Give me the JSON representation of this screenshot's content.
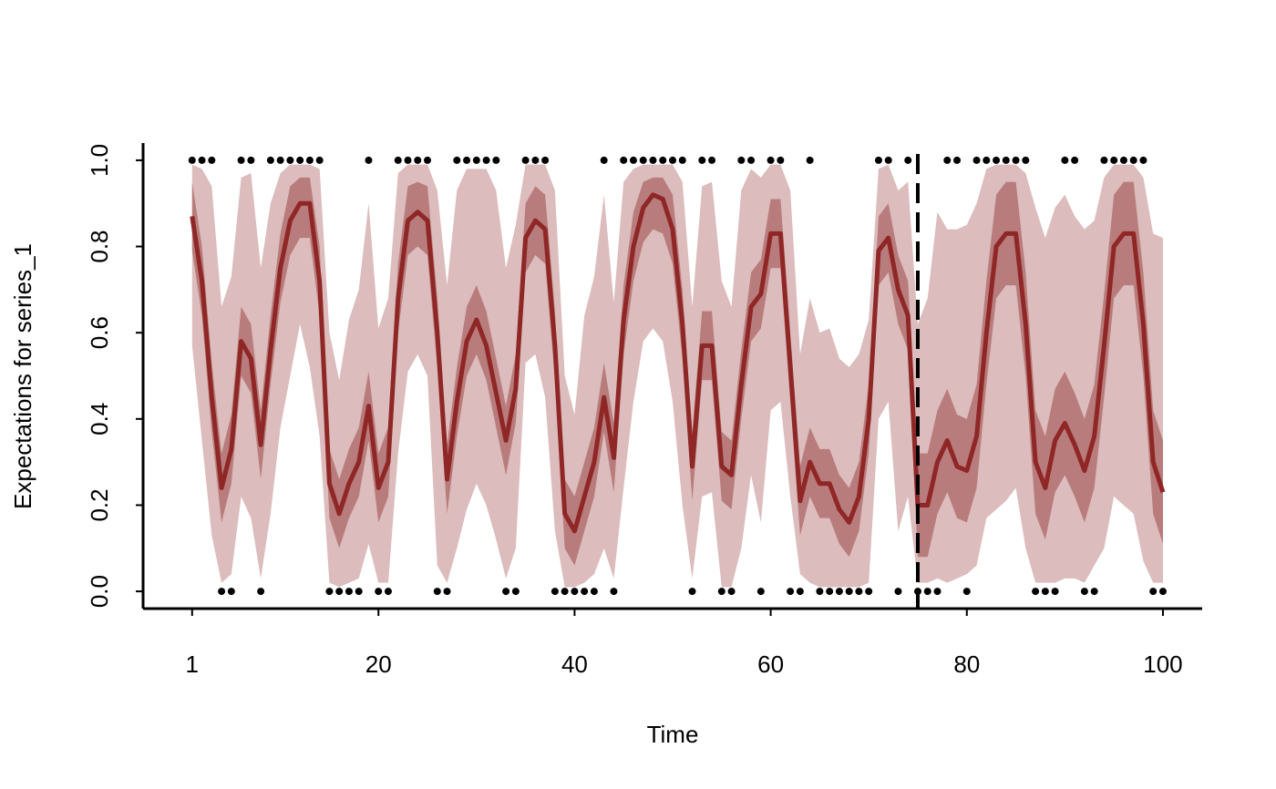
{
  "chart_data": {
    "type": "line",
    "xlabel": "Time",
    "ylabel": "Expectations for series_1",
    "x": [
      1,
      2,
      3,
      4,
      5,
      6,
      7,
      8,
      9,
      10,
      11,
      12,
      13,
      14,
      15,
      16,
      17,
      18,
      19,
      20,
      21,
      22,
      23,
      24,
      25,
      26,
      27,
      28,
      29,
      30,
      31,
      32,
      33,
      34,
      35,
      36,
      37,
      38,
      39,
      40,
      41,
      42,
      43,
      44,
      45,
      46,
      47,
      48,
      49,
      50,
      51,
      52,
      53,
      54,
      55,
      56,
      57,
      58,
      59,
      60,
      61,
      62,
      63,
      64,
      65,
      66,
      67,
      68,
      69,
      70,
      71,
      72,
      73,
      74,
      75,
      76,
      77,
      78,
      79,
      80,
      81,
      82,
      83,
      84,
      85,
      86,
      87,
      88,
      89,
      90,
      91,
      92,
      93,
      94,
      95,
      96,
      97,
      98,
      99,
      100
    ],
    "median": {
      "color": "#8f2727",
      "values": [
        0.87,
        0.72,
        0.45,
        0.24,
        0.33,
        0.58,
        0.54,
        0.34,
        0.56,
        0.75,
        0.86,
        0.9,
        0.9,
        0.72,
        0.25,
        0.18,
        0.25,
        0.3,
        0.43,
        0.24,
        0.3,
        0.68,
        0.86,
        0.88,
        0.86,
        0.6,
        0.26,
        0.44,
        0.58,
        0.63,
        0.57,
        0.46,
        0.35,
        0.47,
        0.82,
        0.86,
        0.84,
        0.57,
        0.18,
        0.14,
        0.22,
        0.3,
        0.45,
        0.31,
        0.63,
        0.8,
        0.89,
        0.92,
        0.91,
        0.84,
        0.62,
        0.29,
        0.57,
        0.57,
        0.29,
        0.27,
        0.48,
        0.66,
        0.69,
        0.83,
        0.83,
        0.52,
        0.21,
        0.3,
        0.25,
        0.25,
        0.19,
        0.16,
        0.22,
        0.4,
        0.79,
        0.82,
        0.7,
        0.64,
        0.2,
        0.2,
        0.3,
        0.35,
        0.29,
        0.28,
        0.36,
        0.6,
        0.8,
        0.83,
        0.83,
        0.62,
        0.3,
        0.24,
        0.35,
        0.39,
        0.34,
        0.28,
        0.36,
        0.57,
        0.8,
        0.83,
        0.83,
        0.62,
        0.3,
        0.23
      ]
    },
    "bands": [
      {
        "color": "#dcbcbc",
        "lower": [
          0.57,
          0.35,
          0.13,
          0.02,
          0.04,
          0.22,
          0.17,
          0.03,
          0.18,
          0.38,
          0.5,
          0.62,
          0.52,
          0.36,
          0.02,
          0.01,
          0.02,
          0.03,
          0.11,
          0.02,
          0.02,
          0.32,
          0.51,
          0.55,
          0.5,
          0.06,
          0.02,
          0.1,
          0.19,
          0.25,
          0.2,
          0.12,
          0.03,
          0.1,
          0.53,
          0.55,
          0.45,
          0.14,
          0.01,
          0.01,
          0.02,
          0.04,
          0.1,
          0.03,
          0.24,
          0.44,
          0.58,
          0.61,
          0.58,
          0.44,
          0.2,
          0.03,
          0.22,
          0.23,
          0.01,
          0.01,
          0.1,
          0.27,
          0.16,
          0.42,
          0.44,
          0.22,
          0.04,
          0.02,
          0.01,
          0.01,
          0.01,
          0.01,
          0.01,
          0.02,
          0.4,
          0.44,
          0.14,
          0.22,
          0.02,
          0.02,
          0.03,
          0.02,
          0.03,
          0.04,
          0.06,
          0.17,
          0.19,
          0.21,
          0.24,
          0.1,
          0.02,
          0.02,
          0.02,
          0.03,
          0.03,
          0.02,
          0.06,
          0.1,
          0.22,
          0.2,
          0.18,
          0.07,
          0.02,
          0.02
        ],
        "upper": [
          0.99,
          0.98,
          0.94,
          0.66,
          0.73,
          0.96,
          0.97,
          0.75,
          0.9,
          0.97,
          0.99,
          0.99,
          0.99,
          0.98,
          0.6,
          0.49,
          0.63,
          0.7,
          0.9,
          0.61,
          0.68,
          0.97,
          0.99,
          0.99,
          0.99,
          0.93,
          0.71,
          0.93,
          0.98,
          0.98,
          0.98,
          0.93,
          0.75,
          0.85,
          0.99,
          0.99,
          0.99,
          0.93,
          0.5,
          0.41,
          0.64,
          0.73,
          0.92,
          0.67,
          0.95,
          0.98,
          0.99,
          0.99,
          0.99,
          0.99,
          0.95,
          0.66,
          0.94,
          0.95,
          0.72,
          0.66,
          0.93,
          0.98,
          0.96,
          0.99,
          0.99,
          0.93,
          0.55,
          0.68,
          0.6,
          0.61,
          0.54,
          0.52,
          0.55,
          0.63,
          0.98,
          0.99,
          0.93,
          0.95,
          0.62,
          0.68,
          0.88,
          0.84,
          0.84,
          0.85,
          0.9,
          0.98,
          0.99,
          0.99,
          0.99,
          0.97,
          0.89,
          0.82,
          0.89,
          0.92,
          0.87,
          0.84,
          0.86,
          0.96,
          0.99,
          0.99,
          0.99,
          0.96,
          0.83,
          0.82
        ]
      },
      {
        "color": "#b97c7c",
        "lower": [
          0.79,
          0.64,
          0.37,
          0.16,
          0.25,
          0.5,
          0.46,
          0.26,
          0.48,
          0.67,
          0.78,
          0.82,
          0.82,
          0.64,
          0.17,
          0.1,
          0.17,
          0.22,
          0.35,
          0.16,
          0.22,
          0.6,
          0.78,
          0.8,
          0.78,
          0.52,
          0.18,
          0.36,
          0.5,
          0.55,
          0.49,
          0.38,
          0.27,
          0.39,
          0.74,
          0.78,
          0.76,
          0.49,
          0.1,
          0.06,
          0.14,
          0.22,
          0.37,
          0.23,
          0.55,
          0.72,
          0.81,
          0.84,
          0.83,
          0.76,
          0.54,
          0.21,
          0.49,
          0.49,
          0.21,
          0.19,
          0.4,
          0.58,
          0.61,
          0.75,
          0.75,
          0.44,
          0.13,
          0.22,
          0.17,
          0.17,
          0.11,
          0.08,
          0.14,
          0.32,
          0.71,
          0.74,
          0.62,
          0.56,
          0.08,
          0.08,
          0.18,
          0.23,
          0.17,
          0.16,
          0.24,
          0.48,
          0.68,
          0.71,
          0.71,
          0.5,
          0.18,
          0.12,
          0.23,
          0.27,
          0.22,
          0.16,
          0.24,
          0.45,
          0.68,
          0.71,
          0.71,
          0.5,
          0.18,
          0.11
        ],
        "upper": [
          0.95,
          0.8,
          0.53,
          0.32,
          0.41,
          0.66,
          0.62,
          0.42,
          0.64,
          0.83,
          0.94,
          0.96,
          0.96,
          0.8,
          0.33,
          0.26,
          0.33,
          0.38,
          0.51,
          0.32,
          0.38,
          0.76,
          0.94,
          0.95,
          0.94,
          0.68,
          0.34,
          0.52,
          0.66,
          0.71,
          0.65,
          0.54,
          0.43,
          0.55,
          0.9,
          0.94,
          0.92,
          0.65,
          0.26,
          0.22,
          0.3,
          0.38,
          0.53,
          0.39,
          0.71,
          0.88,
          0.95,
          0.96,
          0.96,
          0.92,
          0.7,
          0.37,
          0.65,
          0.65,
          0.37,
          0.35,
          0.56,
          0.74,
          0.77,
          0.91,
          0.91,
          0.6,
          0.29,
          0.38,
          0.33,
          0.33,
          0.27,
          0.24,
          0.3,
          0.48,
          0.87,
          0.9,
          0.78,
          0.72,
          0.32,
          0.32,
          0.42,
          0.47,
          0.41,
          0.4,
          0.48,
          0.72,
          0.92,
          0.95,
          0.95,
          0.74,
          0.42,
          0.36,
          0.47,
          0.51,
          0.46,
          0.4,
          0.48,
          0.69,
          0.92,
          0.95,
          0.95,
          0.74,
          0.42,
          0.35
        ]
      }
    ],
    "observations": [
      1,
      1,
      1,
      0,
      0,
      1,
      1,
      0,
      1,
      1,
      1,
      1,
      1,
      1,
      0,
      0,
      0,
      0,
      1,
      0,
      0,
      1,
      1,
      1,
      1,
      0,
      0,
      1,
      1,
      1,
      1,
      1,
      0,
      0,
      1,
      1,
      1,
      0,
      0,
      0,
      0,
      0,
      1,
      0,
      1,
      1,
      1,
      1,
      1,
      1,
      1,
      0,
      1,
      1,
      0,
      0,
      1,
      1,
      0,
      1,
      1,
      0,
      0,
      1,
      0,
      0,
      0,
      0,
      0,
      0,
      1,
      1,
      0,
      1,
      0,
      0,
      0,
      1,
      1,
      0,
      1,
      1,
      1,
      1,
      1,
      1,
      0,
      0,
      0,
      1,
      1,
      0,
      0,
      1,
      1,
      1,
      1,
      1,
      0,
      0
    ],
    "forecast_start": 75,
    "xlim": [
      -4,
      104
    ],
    "ylim": [
      -0.04,
      1.04
    ],
    "xticks": [
      1,
      20,
      40,
      60,
      80,
      100
    ],
    "yticks": [
      {
        "value": 0,
        "label": "0.0"
      },
      0.2,
      0.4,
      0.6,
      0.8,
      {
        "value": 1,
        "label": "1.0"
      }
    ]
  }
}
